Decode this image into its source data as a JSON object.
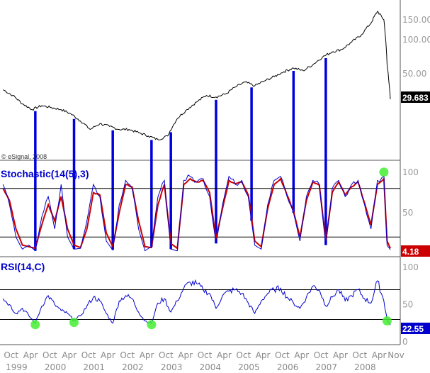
{
  "watermark": "© eSignal, 2008",
  "colors": {
    "price_line": "#000000",
    "stoch_k": "#0000cc",
    "stoch_d": "#cc0000",
    "rsi_line": "#0000cc",
    "signal_line": "#0000dd",
    "highlight": "#44ee33",
    "panel_border": "#555555",
    "grid_level": "#000000",
    "tick_text": "#999999"
  },
  "chart_data": [
    {
      "type": "line",
      "panel": "price",
      "scale": "log",
      "yticks": [
        "150.00",
        "100.00",
        "50.00"
      ],
      "ytick_values": [
        150,
        100,
        50
      ],
      "ylim": [
        10,
        200
      ],
      "last_value_label": "29.683",
      "x": [
        "1998-11",
        "1999-02",
        "1999-05",
        "1999-08",
        "1999-11",
        "2000-02",
        "2000-05",
        "2000-08",
        "2000-11",
        "2001-02",
        "2001-05",
        "2001-08",
        "2001-11",
        "2002-02",
        "2002-05",
        "2002-08",
        "2002-11",
        "2003-02",
        "2003-05",
        "2003-08",
        "2003-11",
        "2004-02",
        "2004-05",
        "2004-08",
        "2004-11",
        "2005-02",
        "2005-05",
        "2005-08",
        "2005-11",
        "2006-02",
        "2006-05",
        "2006-08",
        "2006-11",
        "2007-02",
        "2007-05",
        "2007-08",
        "2007-11",
        "2008-02",
        "2008-05",
        "2008-07",
        "2008-09",
        "2008-10",
        "2008-11"
      ],
      "series": [
        {
          "values": [
            36,
            32,
            27,
            24,
            26,
            25,
            24,
            22,
            19,
            16,
            18,
            17,
            16,
            16,
            15,
            14,
            13,
            14,
            20,
            24,
            28,
            32,
            31,
            33,
            38,
            42,
            39,
            43,
            47,
            52,
            56,
            53,
            60,
            70,
            78,
            82,
            95,
            110,
            140,
            178,
            150,
            60,
            29.683
          ]
        }
      ],
      "signals": [
        "1999-09",
        "2000-09",
        "2001-09",
        "2002-09",
        "2003-03",
        "2004-05",
        "2005-04",
        "2006-05",
        "2007-03"
      ]
    },
    {
      "type": "line",
      "panel": "stochastic",
      "title": "Stochastic(14(5),3)",
      "yticks": [
        "100",
        "50"
      ],
      "ytick_values": [
        100,
        50
      ],
      "levels": [
        80,
        20
      ],
      "ylim": [
        0,
        100
      ],
      "last_value_label": "4.18",
      "x": [
        "1998-11",
        "1999-01",
        "1999-03",
        "1999-05",
        "1999-07",
        "1999-09",
        "1999-11",
        "2000-01",
        "2000-03",
        "2000-05",
        "2000-07",
        "2000-09",
        "2000-11",
        "2001-01",
        "2001-03",
        "2001-05",
        "2001-07",
        "2001-09",
        "2001-11",
        "2002-01",
        "2002-03",
        "2002-05",
        "2002-07",
        "2002-09",
        "2002-11",
        "2003-01",
        "2003-03",
        "2003-05",
        "2003-07",
        "2003-09",
        "2003-11",
        "2004-01",
        "2004-03",
        "2004-05",
        "2004-07",
        "2004-09",
        "2004-11",
        "2005-01",
        "2005-03",
        "2005-05",
        "2005-07",
        "2005-09",
        "2005-11",
        "2006-01",
        "2006-03",
        "2006-05",
        "2006-07",
        "2006-09",
        "2006-11",
        "2007-01",
        "2007-03",
        "2007-05",
        "2007-07",
        "2007-09",
        "2007-11",
        "2008-01",
        "2008-03",
        "2008-05",
        "2008-07",
        "2008-09",
        "2008-10",
        "2008-11"
      ],
      "series": [
        {
          "values": [
            85,
            60,
            20,
            5,
            10,
            3,
            45,
            70,
            30,
            85,
            20,
            5,
            6,
            40,
            85,
            70,
            15,
            4,
            60,
            90,
            80,
            30,
            3,
            8,
            70,
            90,
            5,
            3,
            90,
            95,
            88,
            92,
            70,
            12,
            60,
            95,
            85,
            90,
            70,
            10,
            5,
            60,
            90,
            95,
            70,
            50,
            15,
            70,
            90,
            85,
            10,
            80,
            90,
            70,
            85,
            90,
            60,
            30,
            90,
            95,
            10,
            4.18
          ]
        },
        {
          "values": [
            80,
            65,
            30,
            10,
            8,
            6,
            35,
            60,
            40,
            70,
            30,
            10,
            7,
            30,
            75,
            72,
            25,
            8,
            50,
            85,
            82,
            40,
            8,
            7,
            60,
            85,
            12,
            6,
            85,
            92,
            88,
            90,
            75,
            18,
            55,
            90,
            86,
            88,
            72,
            15,
            8,
            55,
            85,
            92,
            72,
            52,
            20,
            65,
            88,
            84,
            15,
            75,
            88,
            72,
            82,
            88,
            62,
            35,
            85,
            92,
            15,
            6
          ]
        }
      ],
      "signals": [
        "1999-09",
        "2000-09",
        "2001-09",
        "2002-09",
        "2003-03",
        "2004-05",
        "2005-04",
        "2006-05",
        "2007-03",
        "2008-09"
      ]
    },
    {
      "type": "line",
      "panel": "rsi",
      "title": "RSI(14,C)",
      "yticks": [
        "100",
        "50",
        "0"
      ],
      "ytick_values": [
        100,
        50,
        0
      ],
      "levels": [
        70,
        30
      ],
      "ylim": [
        0,
        100
      ],
      "last_value_label": "22.55",
      "x": [
        "1998-11",
        "1999-01",
        "1999-03",
        "1999-05",
        "1999-07",
        "1999-09",
        "1999-11",
        "2000-01",
        "2000-03",
        "2000-05",
        "2000-07",
        "2000-09",
        "2000-11",
        "2001-01",
        "2001-03",
        "2001-05",
        "2001-07",
        "2001-09",
        "2001-11",
        "2002-01",
        "2002-03",
        "2002-05",
        "2002-07",
        "2002-09",
        "2002-11",
        "2003-01",
        "2003-03",
        "2003-05",
        "2003-07",
        "2003-09",
        "2003-11",
        "2004-01",
        "2004-03",
        "2004-05",
        "2004-07",
        "2004-09",
        "2004-11",
        "2005-01",
        "2005-03",
        "2005-05",
        "2005-07",
        "2005-09",
        "2005-11",
        "2006-01",
        "2006-03",
        "2006-05",
        "2006-07",
        "2006-09",
        "2006-11",
        "2007-01",
        "2007-03",
        "2007-05",
        "2007-07",
        "2007-09",
        "2007-11",
        "2008-01",
        "2008-03",
        "2008-05",
        "2008-07",
        "2008-09",
        "2008-10",
        "2008-11"
      ],
      "series": [
        {
          "values": [
            58,
            50,
            38,
            45,
            35,
            25,
            48,
            62,
            50,
            42,
            38,
            28,
            35,
            48,
            60,
            55,
            38,
            25,
            55,
            62,
            58,
            40,
            28,
            25,
            52,
            58,
            40,
            55,
            72,
            80,
            78,
            70,
            65,
            45,
            62,
            68,
            70,
            65,
            52,
            38,
            55,
            65,
            70,
            72,
            60,
            52,
            45,
            60,
            75,
            70,
            48,
            60,
            70,
            55,
            62,
            70,
            58,
            52,
            82,
            55,
            30,
            22.55
          ]
        }
      ],
      "signals": [
        "1999-09",
        "2000-09",
        "2002-09",
        "2008-10"
      ]
    }
  ],
  "x_axis": {
    "month_labels": [
      "Oct",
      "Apr",
      "Oct",
      "Apr",
      "Oct",
      "Apr",
      "Oct",
      "Apr",
      "Oct",
      "Apr",
      "Oct",
      "Apr",
      "Oct",
      "Apr",
      "Oct",
      "Apr",
      "Oct",
      "Apr",
      "Oct",
      "Apr",
      "Nov"
    ],
    "year_labels": [
      "1999",
      "2000",
      "2001",
      "2002",
      "2003",
      "2004",
      "2005",
      "2006",
      "2007",
      "2008"
    ]
  }
}
